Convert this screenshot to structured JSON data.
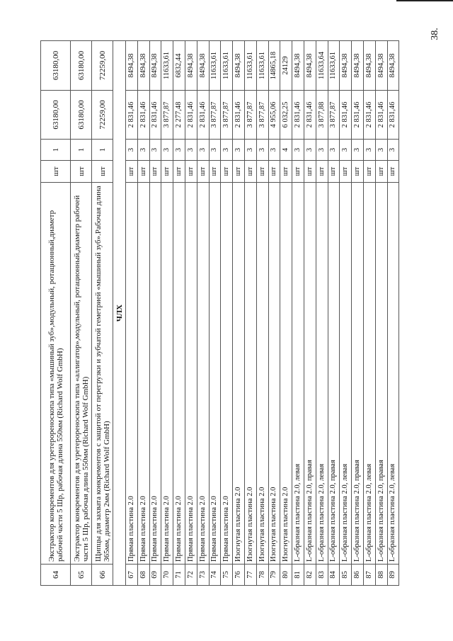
{
  "page_number": "38.",
  "rows_top": [
    {
      "no": "64",
      "name": "Экстрактор конкрементов для уретерореноскопа типа «мышиный зуб»,модульный, ротационный,диаметр рабочей части 5 Шр, рабочая длина 550мм (Richard Wolf GmbH)",
      "unit": "шт",
      "qty": "1",
      "price": "63180,00",
      "total": "63180,00"
    },
    {
      "no": "65",
      "name": "Экстрактор конкрементов для уретерореноскопа типа «аллигатор»,модульный, ротационный,диаметр рабочей части 5 Шр, рабочая длина 550мм (Richard Wolf GmbH)",
      "unit": "шт",
      "qty": "1",
      "price": "63180,00",
      "total": "63180,00"
    },
    {
      "no": "66",
      "name": "Щипцы для захвата конкрементов с защитой от перегрузки и зубчатой геметрией «мышиный зуб».Рабочая длина 365мм, диаметр 2мм (Richard Wolf GmbH)",
      "unit": "шт",
      "qty": "1",
      "price": "72259,00",
      "total": "72259,00"
    }
  ],
  "section_title": "ЧЛХ",
  "rows": [
    {
      "no": "67",
      "name": "Прямая пластина 2.0",
      "unit": "шт",
      "qty": "3",
      "price": "2 831,46",
      "total": "8494,38"
    },
    {
      "no": "68",
      "name": "Прямая пластина 2.0",
      "unit": "шт",
      "qty": "3",
      "price": "2 831,46",
      "total": "8494,38"
    },
    {
      "no": "69",
      "name": "Прямая пластина 2.0",
      "unit": "шт",
      "qty": "3",
      "price": "2 831,46",
      "total": "8494,38"
    },
    {
      "no": "70",
      "name": "Прямая пластина 2.0",
      "unit": "шт",
      "qty": "3",
      "price": "3 877,87",
      "total": "11633,61"
    },
    {
      "no": "71",
      "name": "Прямая пластина 2.0",
      "unit": "шт",
      "qty": "3",
      "price": "2 277,48",
      "total": "6832,44"
    },
    {
      "no": "72",
      "name": "Прямая пластина 2.0",
      "unit": "шт",
      "qty": "3",
      "price": "2 831,46",
      "total": "8494,38"
    },
    {
      "no": "73",
      "name": "Прямая пластина 2.0",
      "unit": "шт",
      "qty": "3",
      "price": "2 831,46",
      "total": "8494,38"
    },
    {
      "no": "74",
      "name": "Прямая пластина 2.0",
      "unit": "шт",
      "qty": "3",
      "price": "3 877,87",
      "total": "11633,61"
    },
    {
      "no": "75",
      "name": "Прямая пластина 2.0",
      "unit": "шт",
      "qty": "3",
      "price": "3 877,87",
      "total": "11633,61"
    },
    {
      "no": "76",
      "name": "Изогнутая пластина 2.0",
      "unit": "шт",
      "qty": "3",
      "price": "2 831,46",
      "total": "8494,38"
    },
    {
      "no": "77",
      "name": "Изогнутая пластина 2.0",
      "unit": "шт",
      "qty": "3",
      "price": "3 877,87",
      "total": "11633,61"
    },
    {
      "no": "78",
      "name": "Изогнутая пластина 2.0",
      "unit": "шт",
      "qty": "3",
      "price": "3 877,87",
      "total": "11633,61"
    },
    {
      "no": "79",
      "name": "Изогнутая пластина 2.0",
      "unit": "шт",
      "qty": "3",
      "price": "4 955,06",
      "total": "14865,18"
    },
    {
      "no": "80",
      "name": "Изогнутая пластина 2.0",
      "unit": "шт",
      "qty": "4",
      "price": "6 032,25",
      "total": "24129"
    },
    {
      "no": "81",
      "name": "L-образная пластина 2.0, левая",
      "unit": "шт",
      "qty": "3",
      "price": "2 831,46",
      "total": "8494,38"
    },
    {
      "no": "82",
      "name": "L-образная пластина 2.0, правая",
      "unit": "шт",
      "qty": "3",
      "price": "2 831,46",
      "total": "8494,38"
    },
    {
      "no": "83",
      "name": "L-образная пластина 2.0, левая",
      "unit": "шт",
      "qty": "3",
      "price": "3 877,88",
      "total": "11633,64"
    },
    {
      "no": "84",
      "name": "L-образная пластина 2.0, правая",
      "unit": "шт",
      "qty": "3",
      "price": "3 877,87",
      "total": "11633,61"
    },
    {
      "no": "85",
      "name": "L-образная пластина 2.0, левая",
      "unit": "шт",
      "qty": "3",
      "price": "2 831,46",
      "total": "8494,38"
    },
    {
      "no": "86",
      "name": "L-образная пластина 2.0, правая",
      "unit": "шт",
      "qty": "3",
      "price": "2 831,46",
      "total": "8494,38"
    },
    {
      "no": "87",
      "name": "L-образная пластина 2.0, левая",
      "unit": "шт",
      "qty": "3",
      "price": "2 831,46",
      "total": "8494,38"
    },
    {
      "no": "88",
      "name": "L-образная пластина 2.0, правая",
      "unit": "шт",
      "qty": "3",
      "price": "2 831,46",
      "total": "8494,38"
    },
    {
      "no": "89",
      "name": "L-образная пластина 2.0, левая",
      "unit": "шт",
      "qty": "3",
      "price": "2 831,46",
      "total": "8494,38"
    }
  ]
}
